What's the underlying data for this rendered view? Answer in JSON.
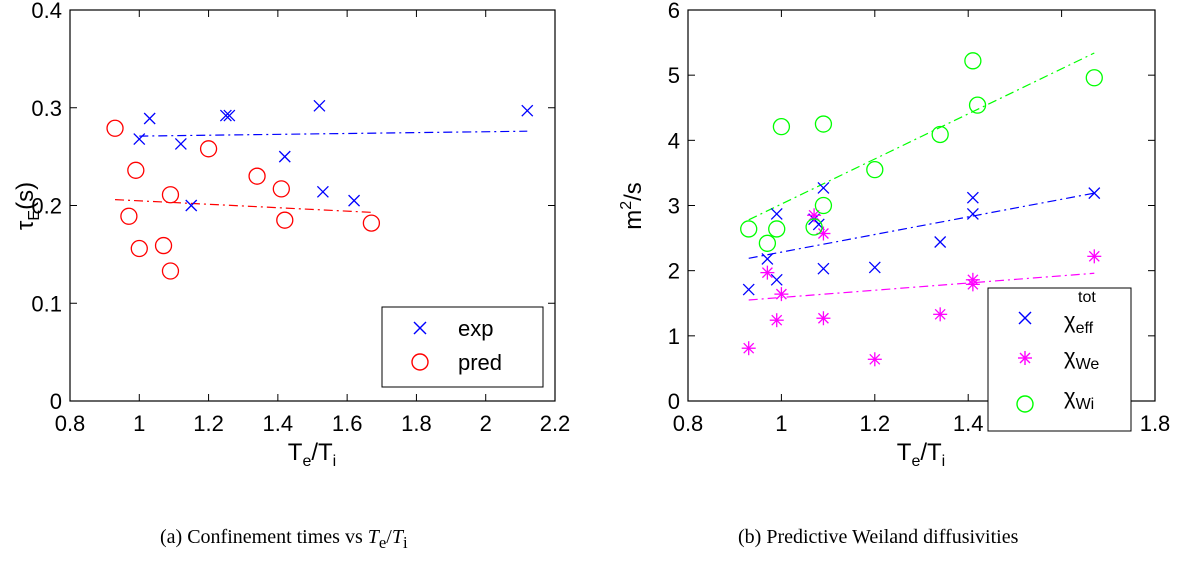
{
  "chart_data": [
    {
      "type": "scatter",
      "caption": {
        "prefix": "(a) Confinement times vs ",
        "math": "T",
        "sub1": "e",
        "slash": "/",
        "math2": "T",
        "sub2": "i"
      },
      "xlabel": {
        "base": "T",
        "sub1": "e",
        "slash": "/T",
        "sub2": "i"
      },
      "ylabel": {
        "base": "τ",
        "sub": "E",
        "rest": "(s)"
      },
      "xlim": [
        0.8,
        2.2
      ],
      "ylim": [
        0,
        0.4
      ],
      "xticks": [
        "0.8",
        "1",
        "1.2",
        "1.4",
        "1.6",
        "1.8",
        "2",
        "2.2"
      ],
      "yticks": [
        "0",
        "0.1",
        "0.2",
        "0.3",
        "0.4"
      ],
      "legend_position": "bottom-right",
      "series": [
        {
          "name": "exp",
          "marker": "x",
          "color": "#0000ff",
          "points": [
            [
              1.0,
              0.268
            ],
            [
              1.03,
              0.289
            ],
            [
              1.12,
              0.263
            ],
            [
              1.15,
              0.2
            ],
            [
              1.25,
              0.292
            ],
            [
              1.26,
              0.292
            ],
            [
              1.42,
              0.25
            ],
            [
              1.52,
              0.302
            ],
            [
              1.53,
              0.214
            ],
            [
              1.62,
              0.205
            ],
            [
              2.12,
              0.297
            ]
          ],
          "fit": [
            [
              1.0,
              0.271
            ],
            [
              2.12,
              0.276
            ]
          ]
        },
        {
          "name": "pred",
          "marker": "o",
          "color": "#ff0000",
          "points": [
            [
              0.93,
              0.279
            ],
            [
              0.97,
              0.189
            ],
            [
              0.99,
              0.236
            ],
            [
              1.0,
              0.156
            ],
            [
              1.07,
              0.159
            ],
            [
              1.09,
              0.211
            ],
            [
              1.09,
              0.133
            ],
            [
              1.2,
              0.258
            ],
            [
              1.34,
              0.23
            ],
            [
              1.41,
              0.217
            ],
            [
              1.42,
              0.185
            ],
            [
              1.67,
              0.182
            ]
          ],
          "fit": [
            [
              0.93,
              0.206
            ],
            [
              1.67,
              0.193
            ]
          ]
        }
      ]
    },
    {
      "type": "scatter",
      "caption": {
        "text": "(b) Predictive Weiland diffusivities"
      },
      "xlabel": {
        "base": "T",
        "sub1": "e",
        "slash": "/T",
        "sub2": "i"
      },
      "ylabel": {
        "base": "m",
        "sup": "2",
        "rest": "/s"
      },
      "xlim": [
        0.8,
        1.8
      ],
      "ylim": [
        0,
        6
      ],
      "xticks": [
        "0.8",
        "1",
        "1.2",
        "1.4",
        "1.6",
        "1.8"
      ],
      "yticks": [
        "0",
        "1",
        "2",
        "3",
        "4",
        "5",
        "6"
      ],
      "legend_position": "bottom-right",
      "series": [
        {
          "name": {
            "base": "χ",
            "sup": "tot",
            "sub": "eff"
          },
          "marker": "x",
          "color": "#0000ff",
          "points": [
            [
              0.93,
              1.71
            ],
            [
              0.97,
              2.18
            ],
            [
              0.99,
              1.86
            ],
            [
              0.99,
              2.87
            ],
            [
              1.07,
              2.79
            ],
            [
              1.08,
              2.71
            ],
            [
              1.09,
              3.27
            ],
            [
              1.09,
              2.03
            ],
            [
              1.2,
              2.05
            ],
            [
              1.34,
              2.44
            ],
            [
              1.41,
              3.12
            ],
            [
              1.41,
              2.87
            ],
            [
              1.67,
              3.19
            ]
          ],
          "fit": [
            [
              0.93,
              2.19
            ],
            [
              1.67,
              3.19
            ]
          ]
        },
        {
          "name": {
            "base": "χ",
            "sub": "We"
          },
          "marker": "*",
          "color": "#ff00ff",
          "points": [
            [
              0.93,
              0.81
            ],
            [
              0.97,
              1.97
            ],
            [
              0.99,
              1.24
            ],
            [
              1.0,
              1.64
            ],
            [
              1.07,
              2.85
            ],
            [
              1.09,
              2.57
            ],
            [
              1.09,
              1.27
            ],
            [
              1.2,
              0.64
            ],
            [
              1.34,
              1.33
            ],
            [
              1.41,
              1.86
            ],
            [
              1.41,
              1.79
            ],
            [
              1.67,
              2.22
            ]
          ],
          "fit": [
            [
              0.93,
              1.55
            ],
            [
              1.67,
              1.96
            ]
          ]
        },
        {
          "name": {
            "base": "χ",
            "sub": "Wi"
          },
          "marker": "o",
          "color": "#00ff00",
          "points": [
            [
              0.93,
              2.64
            ],
            [
              0.97,
              2.42
            ],
            [
              0.99,
              2.64
            ],
            [
              1.0,
              4.21
            ],
            [
              1.07,
              2.67
            ],
            [
              1.09,
              4.25
            ],
            [
              1.09,
              3.0
            ],
            [
              1.2,
              3.55
            ],
            [
              1.34,
              4.09
            ],
            [
              1.41,
              5.22
            ],
            [
              1.42,
              4.54
            ],
            [
              1.67,
              4.96
            ]
          ],
          "fit": [
            [
              0.93,
              2.78
            ],
            [
              1.67,
              5.34
            ]
          ]
        }
      ]
    }
  ]
}
